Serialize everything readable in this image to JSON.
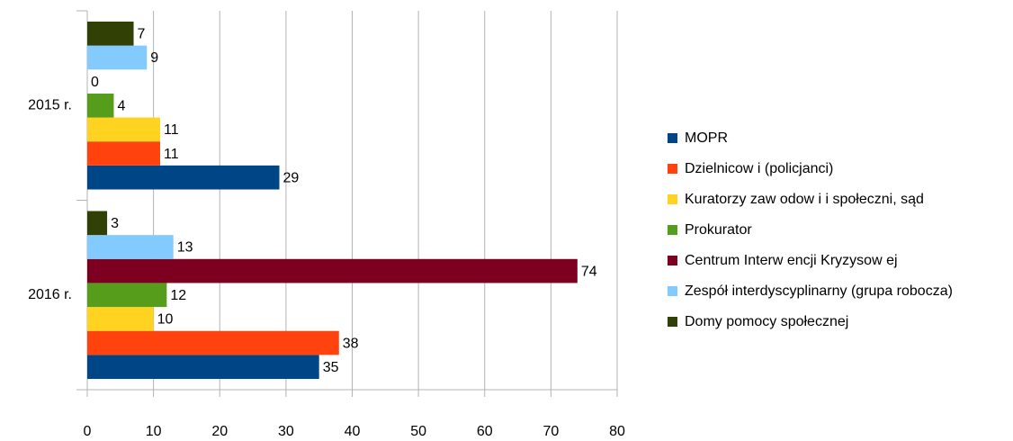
{
  "chart_data": {
    "type": "bar",
    "orientation": "horizontal",
    "categories": [
      "2015 r.",
      "2016 r."
    ],
    "series": [
      {
        "name": "MOPR",
        "color": "#004586",
        "values": [
          29,
          35
        ]
      },
      {
        "name": "Dzielnicow i (policjanci)",
        "color": "#ff420e",
        "values": [
          11,
          38
        ]
      },
      {
        "name": "Kuratorzy zaw odow i i społeczni, sąd",
        "color": "#ffd320",
        "values": [
          11,
          10
        ]
      },
      {
        "name": "Prokurator",
        "color": "#579d1c",
        "values": [
          4,
          12
        ]
      },
      {
        "name": "Centrum Interw encji Kryzysow ej",
        "color": "#7e0021",
        "values": [
          0,
          74
        ]
      },
      {
        "name": "Zespół interdyscyplinarny (grupa robocza)",
        "color": "#83caff",
        "values": [
          9,
          13
        ]
      },
      {
        "name": "Domy pomocy społecznej",
        "color": "#314004",
        "values": [
          7,
          3
        ]
      }
    ],
    "xlim": [
      0,
      80
    ],
    "xticks": [
      0,
      10,
      20,
      30,
      40,
      50,
      60,
      70,
      80
    ],
    "grid": true,
    "legend": "right"
  }
}
